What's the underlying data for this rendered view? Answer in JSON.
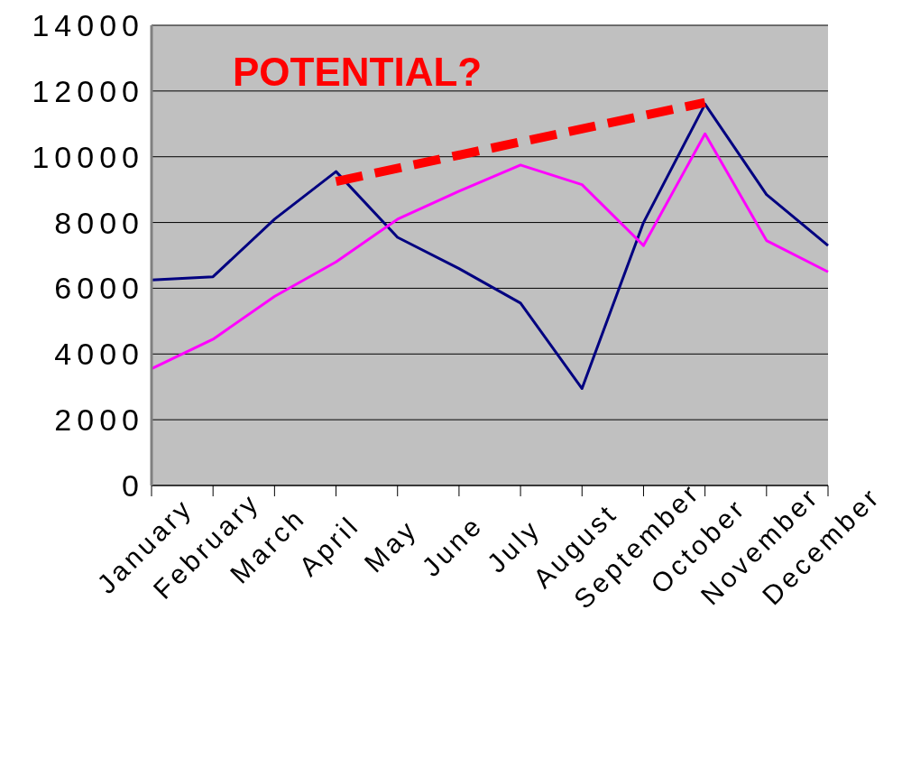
{
  "chart_data": {
    "type": "line",
    "categories": [
      "January",
      "February",
      "March",
      "April",
      "May",
      "June",
      "July",
      "August",
      "September",
      "October",
      "November",
      "December"
    ],
    "series": [
      {
        "color": "#000080",
        "values": [
          6250,
          6350,
          8100,
          9550,
          7550,
          6600,
          5550,
          2950,
          8000,
          11600,
          8850,
          7300
        ]
      },
      {
        "color": "#ff00ff",
        "values": [
          3550,
          4450,
          5750,
          6800,
          8100,
          8950,
          9750,
          9150,
          7300,
          10700,
          7450,
          6500
        ]
      },
      {
        "color": "#ff0000",
        "line_style": "dashed",
        "values": [
          null,
          null,
          null,
          9250,
          null,
          null,
          null,
          null,
          null,
          11650,
          null,
          null
        ]
      }
    ],
    "ylim": [
      0,
      14000
    ],
    "yticks": [
      0,
      2000,
      4000,
      6000,
      8000,
      10000,
      12000,
      14000
    ],
    "grid": "y",
    "annotations": [
      "POTENTIAL?"
    ]
  }
}
